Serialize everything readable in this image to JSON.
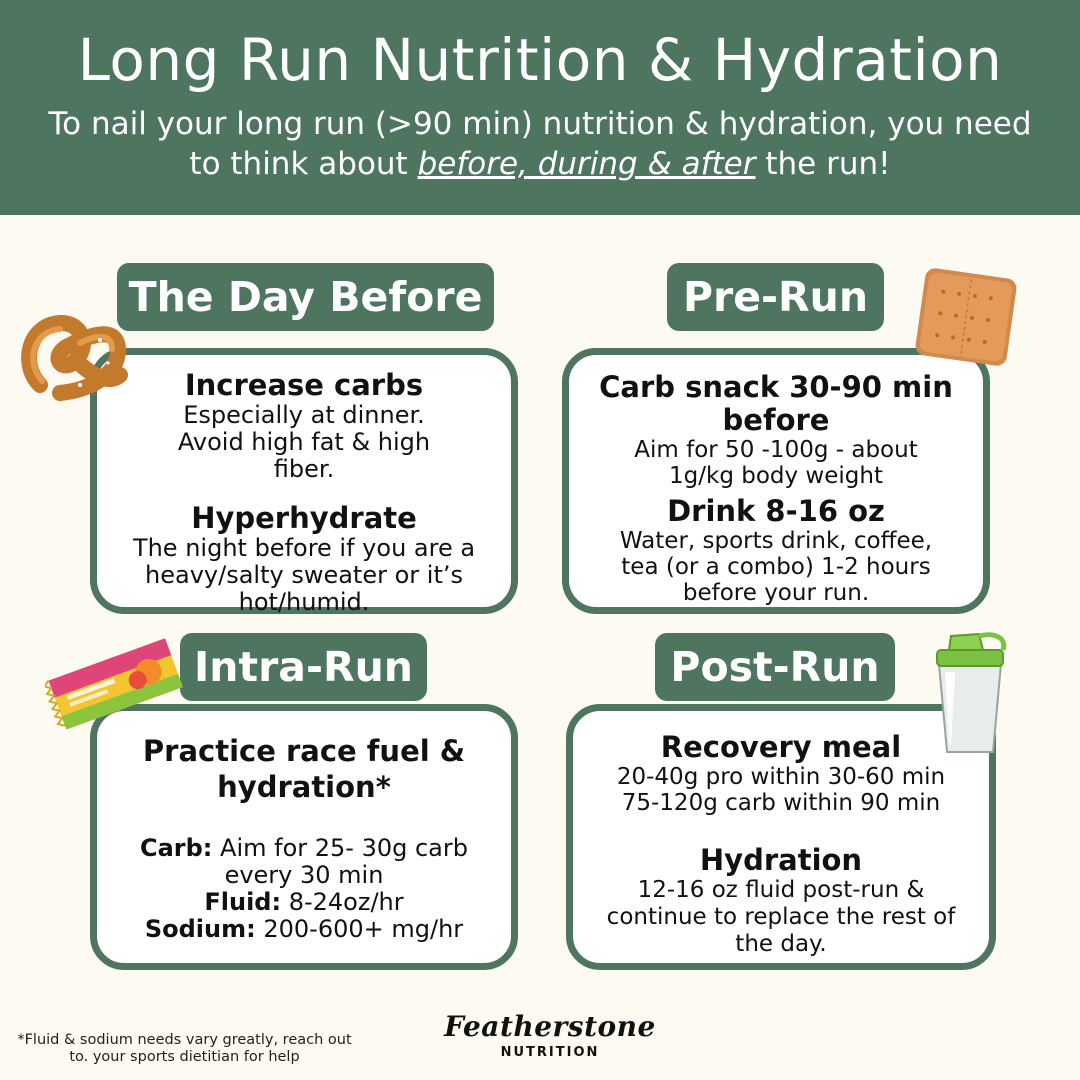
{
  "header": {
    "title": "Long Run Nutrition & Hydration",
    "subtitle_line1": "To nail your long run (>90 min) nutrition & hydration, you need",
    "subtitle_pre": "to think about ",
    "subtitle_emph": "before, during & after",
    "subtitle_post": " the run!"
  },
  "day_before": {
    "label": "The Day Before",
    "h1": "Increase carbs",
    "p1": "Especially at dinner. Avoid high fat & high fiber.",
    "h2": "Hyperhydrate",
    "p2": "The night before if you are a heavy/salty sweater or it’s hot/humid."
  },
  "pre_run": {
    "label": "Pre-Run",
    "h1": "Carb snack 30-90 min before",
    "p1": "Aim for 50 -100g - about 1g/kg body weight",
    "h2": "Drink 8-16 oz",
    "p2": "Water, sports drink, coffee, tea (or a combo) 1-2 hours before your run."
  },
  "intra_run": {
    "label": "Intra-Run",
    "h1": "Practice race fuel & hydration*",
    "carb_label": "Carb:",
    "carb_text": " Aim for 25- 30g carb every 30 min",
    "fluid_label": "Fluid:",
    "fluid_text": " 8-24oz/hr",
    "sodium_label": "Sodium:",
    "sodium_text": " 200-600+ mg/hr"
  },
  "post_run": {
    "label": "Post-Run",
    "h1": "Recovery meal",
    "p1a": "20-40g pro within 30-60 min",
    "p1b": "75-120g carb within 90 min",
    "h2": "Hydration",
    "p2": "12-16 oz fluid post-run & continue to replace the rest of the day."
  },
  "footer": {
    "footnote": "*Fluid & sodium needs vary greatly, reach out to. your sports dietitian for help",
    "brand_name": "Featherstone",
    "brand_sub": "NUTRITION"
  },
  "icons": [
    "pretzel-icon",
    "cracker-icon",
    "energy-chews-icon",
    "shaker-bottle-icon"
  ],
  "colors": {
    "primary_green": "#4d7560",
    "background": "#fdfaf2"
  }
}
